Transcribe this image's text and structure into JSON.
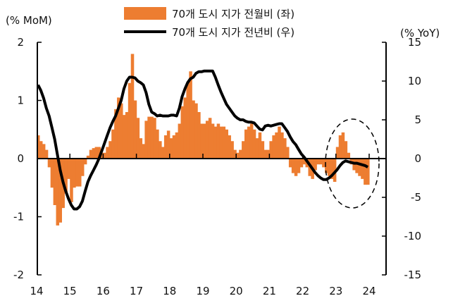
{
  "chart_data": {
    "type": "bar+line",
    "left_axis_label": "(% MoM)",
    "right_axis_label": "(% YoY)",
    "x_ticks": [
      "14",
      "15",
      "16",
      "17",
      "18",
      "19",
      "20",
      "21",
      "22",
      "23",
      "24"
    ],
    "left_ticks": [
      "2",
      "1",
      "0",
      "-1",
      "-2"
    ],
    "right_ticks": [
      "15",
      "10",
      "5",
      "0",
      "-5",
      "-10",
      "-15"
    ],
    "ylim_left": [
      -2,
      2
    ],
    "ylim_right": [
      -15,
      15
    ],
    "xlim": [
      2014,
      2024.5
    ],
    "x_start": "2014-01",
    "frequency": "monthly",
    "grid": false,
    "legend_position": "top-center",
    "series": [
      {
        "name": "70개 도시 지가 전월비 (좌)",
        "kind": "bar",
        "axis": "left",
        "color": "#ED7D31",
        "values": [
          0.4,
          0.3,
          0.25,
          0.15,
          -0.15,
          -0.5,
          -0.8,
          -1.15,
          -1.1,
          -0.85,
          -0.6,
          -0.35,
          -0.75,
          -0.5,
          -0.48,
          -0.48,
          -0.3,
          -0.1,
          0.05,
          0.15,
          0.18,
          0.2,
          0.2,
          0.1,
          0.1,
          0.2,
          0.3,
          0.5,
          0.85,
          1.05,
          0.95,
          0.75,
          0.8,
          1.3,
          1.8,
          1.0,
          0.7,
          0.35,
          0.25,
          0.65,
          0.72,
          0.72,
          0.7,
          0.5,
          0.3,
          0.2,
          0.4,
          0.48,
          0.35,
          0.4,
          0.45,
          0.6,
          0.9,
          1.05,
          1.3,
          1.5,
          1.0,
          0.95,
          0.8,
          0.6,
          0.6,
          0.65,
          0.7,
          0.6,
          0.55,
          0.6,
          0.55,
          0.55,
          0.5,
          0.4,
          0.3,
          0.15,
          0.1,
          0.15,
          0.3,
          0.5,
          0.55,
          0.6,
          0.5,
          0.35,
          0.45,
          0.3,
          0.15,
          0.15,
          0.3,
          0.4,
          0.45,
          0.55,
          0.45,
          0.35,
          0.2,
          -0.15,
          -0.25,
          -0.3,
          -0.25,
          -0.15,
          -0.1,
          -0.15,
          -0.3,
          -0.35,
          -0.2,
          -0.1,
          -0.1,
          -0.15,
          -0.25,
          -0.3,
          -0.35,
          -0.4,
          0.2,
          0.4,
          0.45,
          0.3,
          0.1,
          -0.1,
          -0.2,
          -0.25,
          -0.3,
          -0.35,
          -0.45,
          -0.45
        ]
      },
      {
        "name": "70개 도시 지가 전년비 (우)",
        "kind": "line",
        "axis": "right",
        "color": "#000000",
        "values": [
          9.5,
          8.8,
          7.8,
          6.5,
          5.5,
          4,
          2.5,
          0.5,
          -1.5,
          -3,
          -4.2,
          -5.2,
          -6,
          -6.5,
          -6.5,
          -6.2,
          -5.5,
          -4.2,
          -3,
          -2.2,
          -1.5,
          -0.8,
          0,
          1,
          2,
          3,
          4,
          4.8,
          5.5,
          6.5,
          7.5,
          9,
          10,
          10.5,
          10.5,
          10.4,
          10,
          9.8,
          9.5,
          8.5,
          7,
          6,
          5.8,
          5.5,
          5.6,
          5.5,
          5.5,
          5.5,
          5.6,
          5.6,
          5.5,
          6.5,
          8,
          9,
          9.8,
          10.3,
          10.5,
          11,
          11.2,
          11.2,
          11.3,
          11.3,
          11.3,
          11.3,
          10.5,
          9.5,
          8.6,
          7.8,
          7,
          6.5,
          6,
          5.5,
          5.2,
          5,
          5,
          4.8,
          4.7,
          4.7,
          4.6,
          4.2,
          3.8,
          3.7,
          4.2,
          4.3,
          4.2,
          4.3,
          4.4,
          4.5,
          4.5,
          4,
          3.5,
          2.8,
          2.2,
          1.8,
          1.2,
          0.6,
          0.2,
          -0.3,
          -0.8,
          -1.3,
          -1.8,
          -2.2,
          -2.5,
          -2.7,
          -2.7,
          -2.5,
          -2.2,
          -1.8,
          -1.4,
          -0.9,
          -0.5,
          -0.3,
          -0.4,
          -0.5,
          -0.6,
          -0.6,
          -0.7,
          -0.8,
          -0.9,
          -1.1
        ]
      }
    ]
  }
}
